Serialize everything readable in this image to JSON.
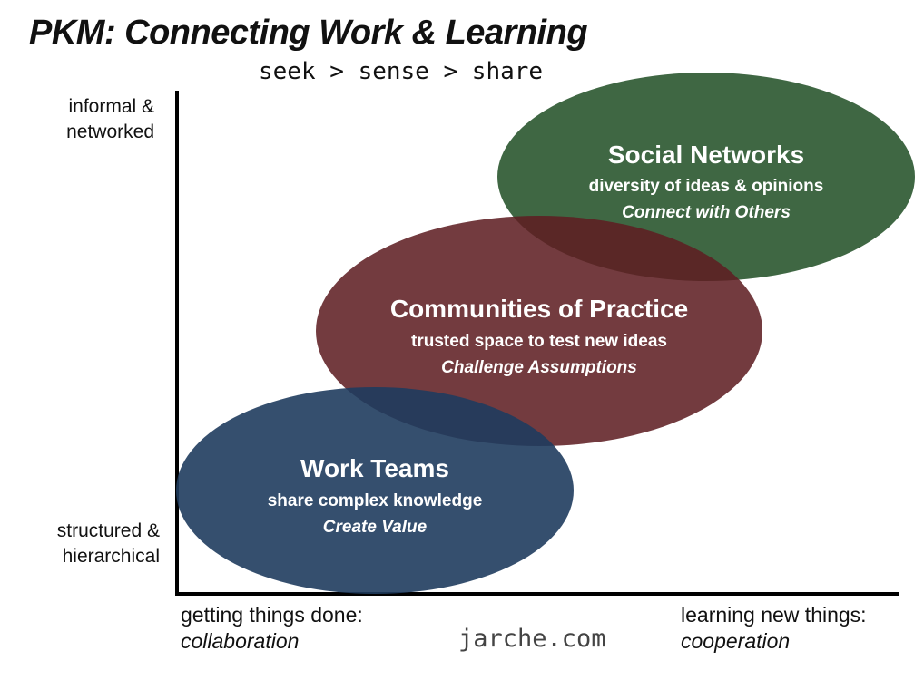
{
  "title": "PKM: Connecting Work & Learning",
  "subtitle": "seek > sense > share",
  "axes": {
    "y_top_line1": "informal &",
    "y_top_line2": "networked",
    "y_bottom_line1": "structured &",
    "y_bottom_line2": "hierarchical",
    "x_left_line1": "getting things done:",
    "x_left_line2": "collaboration",
    "x_right_line1": "learning new things:",
    "x_right_line2": "cooperation"
  },
  "credit": "jarche.com",
  "nodes": {
    "social": {
      "title": "Social Networks",
      "subtitle": "diversity of ideas & opinions",
      "tagline": "Connect with Others",
      "color": "#2f5a33"
    },
    "communities": {
      "title": "Communities of Practice",
      "subtitle": "trusted space to test new ideas",
      "tagline": "Challenge Assumptions",
      "color": "#5e1e22"
    },
    "teams": {
      "title": "Work Teams",
      "subtitle": "share complex knowledge",
      "tagline": "Create Value",
      "color": "#1f3c5e"
    }
  }
}
